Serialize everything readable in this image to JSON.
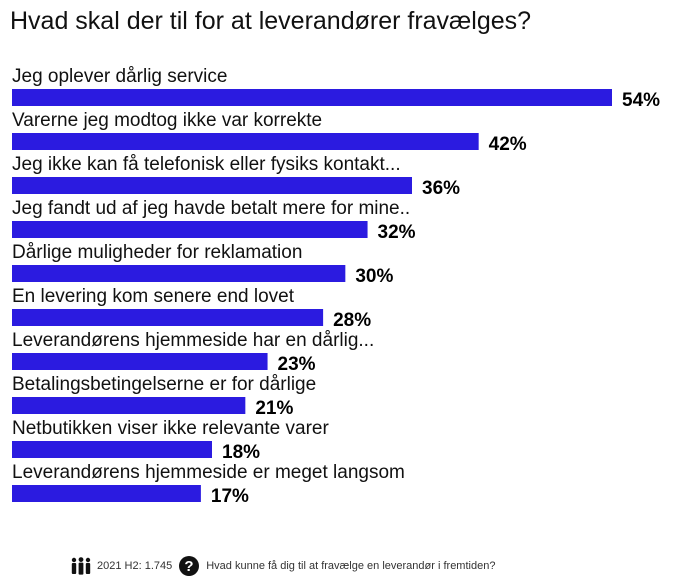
{
  "chart_data": {
    "type": "bar",
    "orientation": "horizontal",
    "title": "Hvad skal der til for at leverandører fravælges?",
    "categories": [
      "Jeg oplever dårlig service",
      "Varerne jeg modtog ikke var korrekte",
      "Jeg ikke kan få telefonisk eller fysiks kontakt...",
      "Jeg fandt ud af jeg havde betalt mere for mine..",
      "Dårlige muligheder for reklamation",
      "En levering kom senere end lovet",
      "Leverandørens hjemmeside har en dårlig...",
      "Betalingsbetingelserne er for dårlige",
      "Netbutikken viser ikke relevante varer",
      "Leverandørens hjemmeside er meget langsom"
    ],
    "values": [
      54,
      42,
      36,
      32,
      30,
      28,
      23,
      21,
      18,
      17
    ],
    "value_labels": [
      "54%",
      "42%",
      "36%",
      "32%",
      "30%",
      "28%",
      "23%",
      "21%",
      "18%",
      "17%"
    ],
    "unit": "%",
    "xlim": [
      0,
      54
    ],
    "grid": false,
    "bar_color": "#2b1be0"
  },
  "footer": {
    "respondents": "2021 H2: 1.745",
    "question": "Hvad kunne få dig til at fravælge en leverandør i fremtiden?",
    "people_icon": "people-icon",
    "question_icon": "question-mark-icon"
  }
}
